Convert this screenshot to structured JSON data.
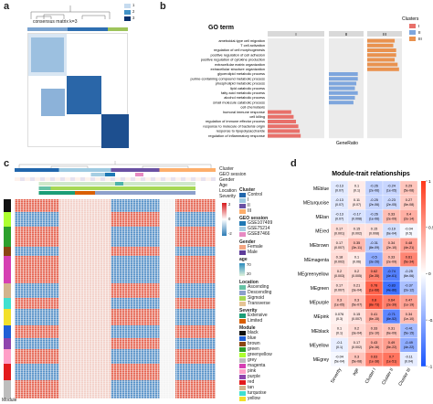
{
  "panel_a": {
    "letter": "a",
    "title": "consensus matrix k=3",
    "legend": [
      "1",
      "2",
      "3"
    ],
    "legend_colors": [
      "#c6dbef",
      "#4292c6",
      "#08306b"
    ]
  },
  "panel_b": {
    "letter": "b",
    "chart_data": {
      "type": "bar",
      "xlabel": "GeneRatio",
      "ylabel": "",
      "legend_title": "Clusters",
      "legend_entries": [
        "I",
        "II",
        "III"
      ],
      "facet_labels": [
        "I",
        "II",
        "III"
      ],
      "header": "GO term",
      "colors": {
        "I": "#e8706a",
        "II": "#7ea6dd",
        "III": "#e9924f"
      },
      "categories": [
        "ameboidal-type cell migration",
        "T cell activation",
        "regulation of cell morphogenesis",
        "positive regulation of cell adhesion",
        "positive regulation of cytokine production",
        "extracellular matrix organization",
        "extracellular structure organization",
        "glycerolipid metabolic process",
        "purine-containing compound metabolic process",
        "phospholipid metabolic process",
        "lipid catabolic process",
        "fatty acid metabolic process",
        "alcohol metabolic process",
        "small molecule catabolic process",
        "cell chemotaxis",
        "humoral immune response",
        "cell killing",
        "regulation of immune effector process",
        "response to molecule of bacterial origin",
        "response to lipopolysaccharide",
        "regulation of inflammatory response"
      ],
      "series": [
        {
          "name": "I",
          "values": [
            0,
            0,
            0,
            0,
            0,
            0,
            0,
            0,
            0,
            0,
            0,
            0,
            0,
            0,
            0,
            0.05,
            0.055,
            0.06,
            0.065,
            0.068,
            0.07
          ]
        },
        {
          "name": "II",
          "values": [
            0,
            0,
            0,
            0,
            0,
            0,
            0,
            0.1,
            0.1,
            0.095,
            0.09,
            0.1,
            0.09,
            0.085,
            0,
            0,
            0,
            0,
            0,
            0,
            0
          ]
        },
        {
          "name": "III",
          "values": [
            0.095,
            0.09,
            0.1,
            0.1,
            0.095,
            0.105,
            0.11,
            0,
            0,
            0,
            0,
            0,
            0,
            0,
            0,
            0,
            0,
            0,
            0,
            0,
            0
          ]
        }
      ]
    }
  },
  "panel_c": {
    "letter": "c",
    "row_labels": [
      "Cluster",
      "GEO session",
      "Gender",
      "Age",
      "Location",
      "Severity"
    ],
    "module_label": "Module",
    "legend": {
      "cluster": {
        "title": "Cluster",
        "items": [
          "Control",
          "I",
          "II",
          "III"
        ],
        "colors": [
          "#2166ac",
          "#9ecae1",
          "#6a51a3",
          "#fdae6b"
        ]
      },
      "geo": {
        "title": "GEO session",
        "items": [
          "GSE107499",
          "GSE75214",
          "GSE87466"
        ],
        "colors": [
          "#1f78b4",
          "#a6cee3",
          "#e78ac3"
        ]
      },
      "gender": {
        "title": "Gender",
        "items": [
          "Female",
          "Male"
        ],
        "colors": [
          "#f4a582",
          "#5e3c99"
        ]
      },
      "age": {
        "title": "age",
        "items": [
          "70",
          "20"
        ]
      },
      "location": {
        "title": "Location",
        "items": [
          "Ascending",
          "Descending",
          "Sigmoid",
          "Transverse"
        ],
        "colors": [
          "#66c2a5",
          "#8da0cb",
          "#a6d854",
          "#e5c494"
        ]
      },
      "severity": {
        "title": "Severity",
        "items": [
          "Extensive",
          "Limited"
        ],
        "colors": [
          "#1b9e77",
          "#d95f02"
        ]
      },
      "scale": {
        "max": "2",
        "mid": "0",
        "min": "-2"
      },
      "module": {
        "title": "Module",
        "items": [
          "black",
          "blue",
          "brown",
          "green",
          "greenyellow",
          "grey",
          "magenta",
          "pink",
          "purple",
          "red",
          "tan",
          "turquoise",
          "yellow"
        ],
        "colors": [
          "#111111",
          "#1f5fd6",
          "#8b4513",
          "#2ca02c",
          "#adff2f",
          "#bdbdbd",
          "#d63fb3",
          "#ff9fc7",
          "#8e44ad",
          "#e31a1c",
          "#d2b48c",
          "#40e0d0",
          "#f2e02a"
        ]
      }
    }
  },
  "panel_d": {
    "letter": "d",
    "chart_data": {
      "type": "heatmap",
      "title": "Module-trait relationships",
      "x": [
        "Severity",
        "age",
        "Cluster I",
        "Cluster II",
        "Cluster III"
      ],
      "y": [
        "MEblue",
        "MEturquoise",
        "MEtan",
        "MEred",
        "MEbrown",
        "MEmagenta",
        "MEgreenyellow",
        "MEgreen",
        "MEpurple",
        "MEpink",
        "MEblack",
        "MEyellow",
        "MEgrey"
      ],
      "values": [
        [
          -0.13,
          0.1,
          -0.26,
          -0.24,
          0.29
        ],
        [
          -0.13,
          0.11,
          -0.25,
          -0.23,
          0.27
        ],
        [
          -0.13,
          -0.17,
          -0.26,
          0.33,
          0.4
        ],
        [
          0.17,
          0.15,
          0.15,
          -0.19,
          -0.04
        ],
        [
          0.17,
          0.35,
          -0.31,
          0.34,
          0.48
        ],
        [
          0.18,
          0.1,
          -0.5,
          0.33,
          0.61
        ],
        [
          0.2,
          0.2,
          0.62,
          -0.74,
          -0.25
        ],
        [
          0.17,
          0.21,
          0.78,
          -0.83,
          -0.37
        ],
        [
          0.3,
          0.3,
          0.8,
          0.64,
          0.47
        ],
        [
          0.076,
          0.15,
          0.41,
          -0.71,
          0.34
        ],
        [
          0.1,
          0.2,
          0.33,
          0.31,
          -0.41
        ],
        [
          -0.1,
          0.17,
          0.43,
          0.49,
          -0.49
        ],
        [
          -0.04,
          0.3,
          0.63,
          0.7,
          -0.11
        ]
      ],
      "pvalues": [
        [
          "(0.07)",
          "(0.1)",
          "(2e-06)",
          "(1e-05)",
          "(5e-08)"
        ],
        [
          "(0.07)",
          "(0.07)",
          "(2e-06)",
          "(2e-05)",
          "(5e-08)"
        ],
        [
          "(0.07)",
          "(0.008)",
          "(1e-06)",
          "(2e-09)",
          "(2e-14)"
        ],
        [
          "(0.001)",
          "(0.002)",
          "(0.008)",
          "(6e-04)",
          "(0.5)"
        ],
        [
          "(0.007)",
          "(3e-11)",
          "(8e-09)",
          "(2e-10)",
          "(4e-21)"
        ],
        [
          "(0.002)",
          "(0.06)",
          "(3e-26)",
          "(2e-09)",
          "(5e-34)"
        ],
        [
          "(0.003)",
          "(0.005)",
          "(3e-35)",
          "(4e-61)",
          "(6e-06)"
        ],
        [
          "(0.007)",
          "(3e-04)",
          "(1e-68)",
          "(4e-86)",
          "(2e-12)"
        ],
        [
          "(1e-05)",
          "(5e-07)",
          "(8e-73)",
          "(2e-39)",
          "(1e-19)"
        ],
        [
          "(0.3)",
          "(0.007)",
          "(6e-15)",
          "(8e-52)",
          "(1e-10)"
        ],
        [
          "(0.1)",
          "(3e-04)",
          "(2e-10)",
          "(6e-09)",
          "(5e-15)"
        ],
        [
          "(0.1)",
          "(0.002)",
          "(2e-16)",
          "(5e-22)",
          "(4e-22)"
        ],
        [
          "(5e-04)",
          "(5e-08)",
          "(1e-38)",
          "(1e-51)",
          "(0.04)"
        ]
      ],
      "colorbar": [
        "1",
        "0.5",
        "0",
        "-0.5",
        "-1"
      ]
    }
  }
}
